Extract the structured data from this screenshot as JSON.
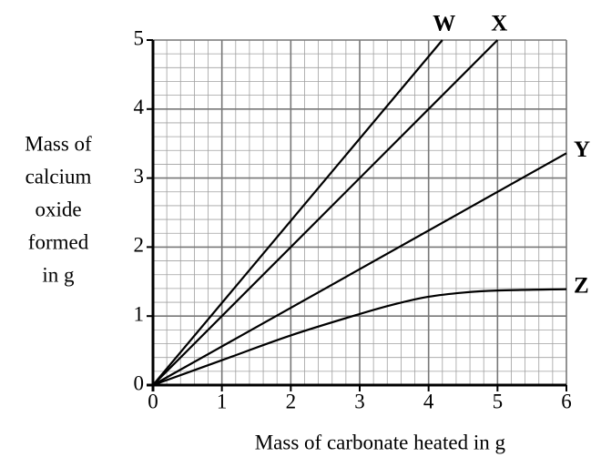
{
  "chart_data": {
    "type": "line",
    "xlabel": "Mass of carbonate heated in g",
    "ylabel": [
      "Mass of",
      "calcium",
      "oxide",
      "formed",
      "in g"
    ],
    "xlim": [
      0,
      6
    ],
    "ylim": [
      0,
      5
    ],
    "xticks": [
      0,
      1,
      2,
      3,
      4,
      5,
      6
    ],
    "yticks": [
      0,
      1,
      2,
      3,
      4,
      5
    ],
    "grid": true,
    "minor_grid": 0.2,
    "series": [
      {
        "name": "W",
        "color": "#000000",
        "x": [
          0,
          4.2
        ],
        "values": [
          0,
          5
        ]
      },
      {
        "name": "X",
        "color": "#000000",
        "x": [
          0,
          5
        ],
        "values": [
          0,
          5
        ]
      },
      {
        "name": "Y",
        "color": "#000000",
        "x": [
          0,
          6
        ],
        "values": [
          0,
          3.36
        ]
      },
      {
        "name": "Z",
        "color": "#000000",
        "x": [
          0,
          1,
          2,
          3,
          3.5,
          4,
          4.5,
          5,
          6
        ],
        "values": [
          0,
          0.36,
          0.72,
          1.03,
          1.17,
          1.28,
          1.34,
          1.37,
          1.39
        ]
      }
    ]
  }
}
